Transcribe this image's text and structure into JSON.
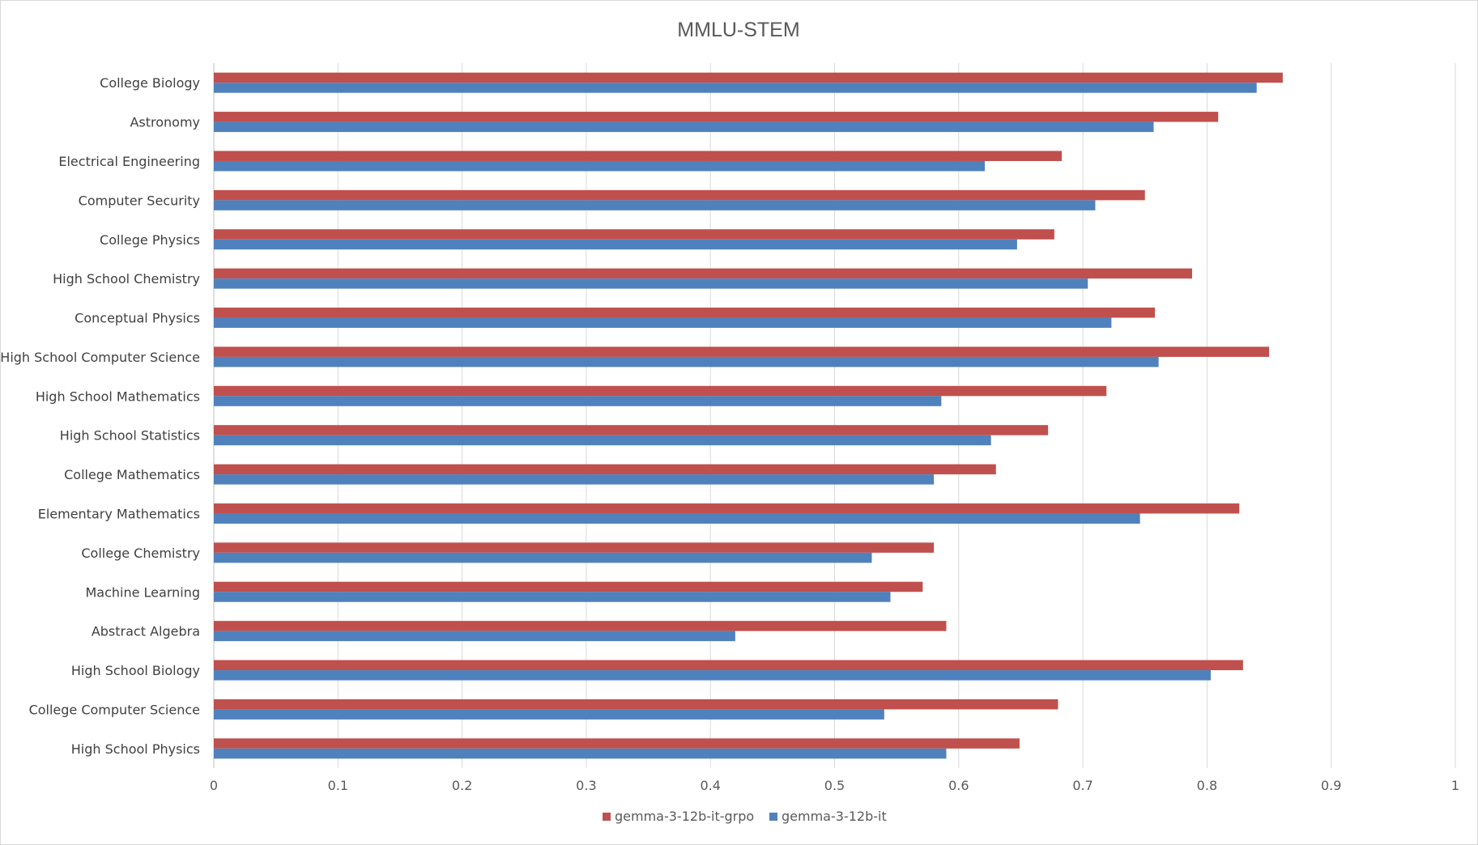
{
  "chart_data": {
    "type": "bar",
    "orientation": "horizontal",
    "title": "MMLU-STEM",
    "xlabel": "",
    "ylabel": "",
    "xlim": [
      0,
      1
    ],
    "xticks": [
      "0",
      "0.1",
      "0.2",
      "0.3",
      "0.4",
      "0.5",
      "0.6",
      "0.7",
      "0.8",
      "0.9",
      "1"
    ],
    "grid": "vertical",
    "legend_position": "bottom",
    "categories": [
      "College Biology",
      "Astronomy",
      "Electrical Engineering",
      "Computer Security",
      "College Physics",
      "High School Chemistry",
      "Conceptual Physics",
      "High School Computer Science",
      "High School Mathematics",
      "High School Statistics",
      "College Mathematics",
      "Elementary Mathematics",
      "College Chemistry",
      "Machine Learning",
      "Abstract Algebra",
      "High School Biology",
      "College Computer Science",
      "High School Physics"
    ],
    "series": [
      {
        "name": "gemma-3-12b-it-grpo",
        "color": "#c0504d",
        "values": [
          0.861,
          0.809,
          0.683,
          0.75,
          0.677,
          0.788,
          0.758,
          0.85,
          0.719,
          0.672,
          0.63,
          0.826,
          0.58,
          0.571,
          0.59,
          0.829,
          0.68,
          0.649
        ]
      },
      {
        "name": "gemma-3-12b-it",
        "color": "#4f81bd",
        "values": [
          0.84,
          0.757,
          0.621,
          0.71,
          0.647,
          0.704,
          0.723,
          0.761,
          0.586,
          0.626,
          0.58,
          0.746,
          0.53,
          0.545,
          0.42,
          0.803,
          0.54,
          0.59
        ]
      }
    ]
  }
}
